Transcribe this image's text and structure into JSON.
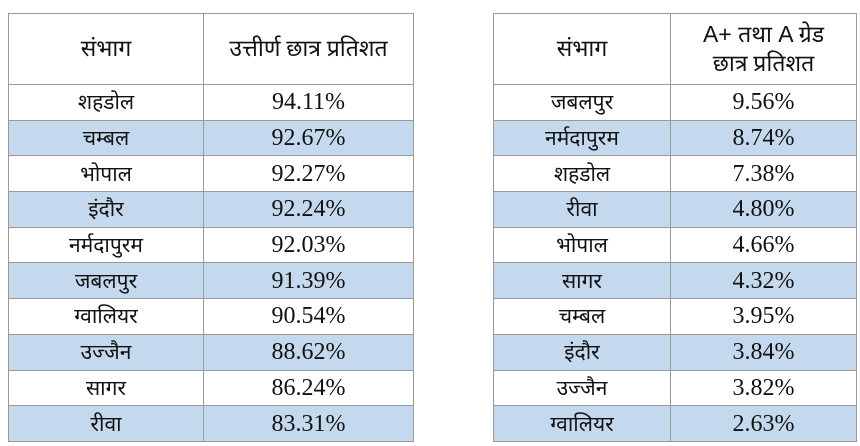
{
  "tables": {
    "left": {
      "headers": [
        "संभाग",
        "उत्तीर्ण छात्र प्रतिशत"
      ],
      "rows": [
        {
          "division": "शहडोल",
          "value": "94.11%"
        },
        {
          "division": "चम्बल",
          "value": "92.67%"
        },
        {
          "division": "भोपाल",
          "value": "92.27%"
        },
        {
          "division": "इंदौर",
          "value": "92.24%"
        },
        {
          "division": "नर्मदापुरम",
          "value": "92.03%"
        },
        {
          "division": "जबलपुर",
          "value": "91.39%"
        },
        {
          "division": "ग्वालियर",
          "value": "90.54%"
        },
        {
          "division": "उज्जैन",
          "value": "88.62%"
        },
        {
          "division": "सागर",
          "value": "86.24%"
        },
        {
          "division": "रीवा",
          "value": "83.31%"
        }
      ]
    },
    "right": {
      "headers": [
        "संभाग",
        "A+ तथा A ग्रेड",
        "छात्र प्रतिशत"
      ],
      "rows": [
        {
          "division": "जबलपुर",
          "value": "9.56%"
        },
        {
          "division": "नर्मदापुरम",
          "value": "8.74%"
        },
        {
          "division": "शहडोल",
          "value": "7.38%"
        },
        {
          "division": "रीवा",
          "value": "4.80%"
        },
        {
          "division": "भोपाल",
          "value": "4.66%"
        },
        {
          "division": "सागर",
          "value": "4.32%"
        },
        {
          "division": "चम्बल",
          "value": "3.95%"
        },
        {
          "division": "इंदौर",
          "value": "3.84%"
        },
        {
          "division": "उज्जैन",
          "value": "3.82%"
        },
        {
          "division": "ग्वालियर",
          "value": "2.63%"
        }
      ]
    }
  },
  "colors": {
    "row_stripe": "#c5d9ee",
    "row_plain": "#ffffff",
    "border": "#9a9a9a",
    "text": "#111111"
  }
}
